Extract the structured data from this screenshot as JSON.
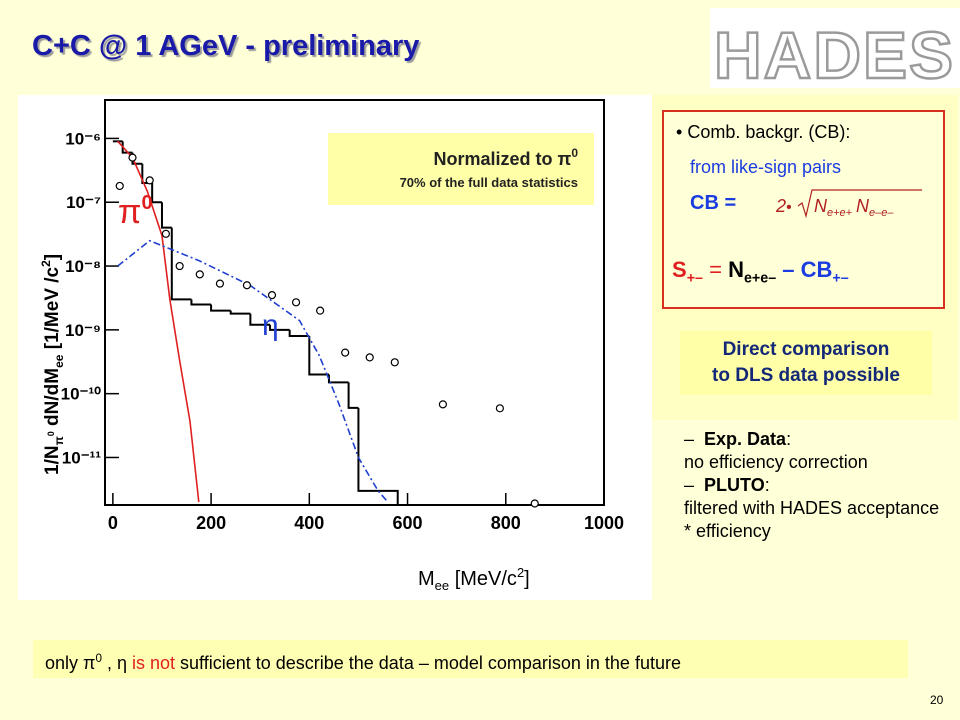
{
  "title": "C+C @ 1 AGeV - preliminary",
  "logo": "HADES",
  "cb_box": {
    "bullet": "•",
    "line1": "Comb. backgr. (CB):",
    "line2": "from like-sign pairs",
    "cb_label": "CB =",
    "formula": {
      "factor": "2",
      "dot": "•",
      "n1": "N",
      "n1_sub": "e+e+",
      "n2": "N",
      "n2_sub": "e–e–"
    },
    "signal": {
      "s": "S",
      "s_sub": "+–",
      "eq": " = ",
      "n": "N",
      "n_sub": "e+e–",
      "minus": " – CB",
      "cb_sub": "+–"
    }
  },
  "comparison": {
    "line1": "Direct comparison",
    "line2": "to DLS data possible"
  },
  "notes": [
    {
      "marker": "–",
      "label": "Exp. Data",
      "colon": ":",
      "text": "no efficiency correction"
    },
    {
      "marker": "–",
      "label": "PLUTO",
      "colon": ":",
      "text": "filtered with HADES acceptance * efficiency"
    }
  ],
  "footer": {
    "part1": "only π",
    "sup": "0",
    "part2": " , η ",
    "highlight": "is not",
    "part3": " sufficient to describe the data – model comparison in the future"
  },
  "page_number": "20",
  "chart_data": {
    "type": "line",
    "x_label": {
      "main": "M",
      "sub": "ee",
      "unit": "  [MeV/c",
      "sup": "2",
      "end": "]"
    },
    "y_label": {
      "p1": "1/N",
      "sub1": "π",
      "sup1": "0",
      "p2": " dN/dM",
      "sub2": "ee",
      "p3": "  [1/MeV /c",
      "sup2": "2",
      "p4": "]"
    },
    "log_y": true,
    "xlim": [
      -16,
      1000
    ],
    "xticks": [
      0,
      200,
      400,
      600,
      800,
      1000
    ],
    "ylim": [
      1.8e-12,
      4e-06
    ],
    "yticks": [
      {
        "value": 1e-06,
        "label": "10⁻⁶"
      },
      {
        "value": 1e-07,
        "label": "10⁻⁷"
      },
      {
        "value": 1e-08,
        "label": "10⁻⁸"
      },
      {
        "value": 1e-09,
        "label": "10⁻⁹"
      },
      {
        "value": 1e-10,
        "label": "10⁻¹⁰"
      },
      {
        "value": 1e-11,
        "label": "10⁻¹¹"
      }
    ],
    "norm_box": {
      "line1": "Normalized to π",
      "line1_sup": "0",
      "line2": "70% of the full data statistics"
    },
    "annotations": [
      {
        "text": "π",
        "sup": "0",
        "color": "#e02020"
      },
      {
        "text": "η",
        "color": "#2040d0"
      }
    ],
    "points": {
      "x": [
        14,
        40,
        75,
        108,
        136,
        177,
        218,
        273,
        324,
        373,
        422,
        473,
        523,
        574,
        672,
        788,
        859
      ],
      "values": [
        1.8e-07,
        5e-07,
        2.2e-07,
        3.2e-08,
        1e-08,
        7.4e-09,
        5.3e-09,
        5e-09,
        3.5e-09,
        2.7e-09,
        2e-09,
        4.4e-10,
        3.7e-10,
        3.1e-10,
        6.8e-11,
        5.9e-11,
        1.9e-12
      ]
    },
    "histogram": {
      "color": "#000000",
      "bins": [
        0,
        20,
        40,
        60,
        80,
        100,
        120,
        160,
        200,
        240,
        280,
        320,
        360,
        400,
        440,
        480,
        500,
        580
      ],
      "values": [
        9e-07,
        6e-07,
        4e-07,
        2e-07,
        1e-07,
        4e-08,
        3e-09,
        2.5e-09,
        2e-09,
        1.8e-09,
        1.2e-09,
        1e-09,
        8e-10,
        2e-10,
        1.5e-10,
        6e-11,
        3e-12
      ]
    },
    "series": [
      {
        "color": "#e02020",
        "dash": false,
        "x": [
          10,
          40,
          70,
          100,
          116,
          136,
          157,
          175
        ],
        "values": [
          9e-07,
          5e-07,
          1.5e-07,
          3e-08,
          3e-09,
          3.3e-10,
          3.7e-11,
          2e-12
        ]
      },
      {
        "color": "#2040d0",
        "dash": true,
        "x": [
          10,
          75,
          177,
          279,
          380,
          420,
          460,
          500,
          540,
          560
        ],
        "values": [
          1e-08,
          2.5e-08,
          1.2e-08,
          5e-09,
          1.4e-09,
          4e-10,
          7e-11,
          1e-11,
          3e-12,
          2e-12
        ]
      }
    ]
  }
}
